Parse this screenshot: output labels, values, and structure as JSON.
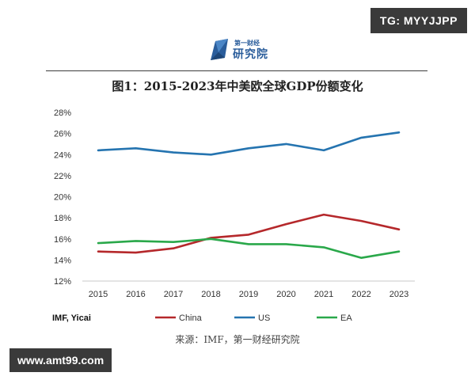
{
  "watermarks": {
    "top": "TG: MYYJJPP",
    "bottom": "www.amt99.com"
  },
  "logo": {
    "top_text": "第一财经",
    "main_text": "研究院"
  },
  "caption": "来源：IMF，第一财经研究院",
  "colors": {
    "China": "#b5282b",
    "US": "#2574b0",
    "EA": "#2aa84a"
  },
  "chart_data": {
    "type": "line",
    "title": "图1：2015-2023年中美欧全球GDP份额变化",
    "source_note": "IMF, Yicai",
    "xlabel": "",
    "ylabel": "",
    "x": [
      2015,
      2016,
      2017,
      2018,
      2019,
      2020,
      2021,
      2022,
      2023
    ],
    "ylim": [
      12,
      28
    ],
    "yticks": [
      12,
      14,
      16,
      18,
      20,
      22,
      24,
      26,
      28
    ],
    "ytick_format": "%",
    "grid": false,
    "legend_position": "bottom",
    "series": [
      {
        "name": "China",
        "values": [
          14.8,
          14.7,
          15.1,
          16.1,
          16.4,
          17.4,
          18.3,
          17.7,
          16.9
        ]
      },
      {
        "name": "US",
        "values": [
          24.4,
          24.6,
          24.2,
          24.0,
          24.6,
          25.0,
          24.4,
          25.6,
          26.1
        ]
      },
      {
        "name": "EA",
        "values": [
          15.6,
          15.8,
          15.7,
          16.0,
          15.5,
          15.5,
          15.2,
          14.2,
          14.8
        ]
      }
    ]
  }
}
